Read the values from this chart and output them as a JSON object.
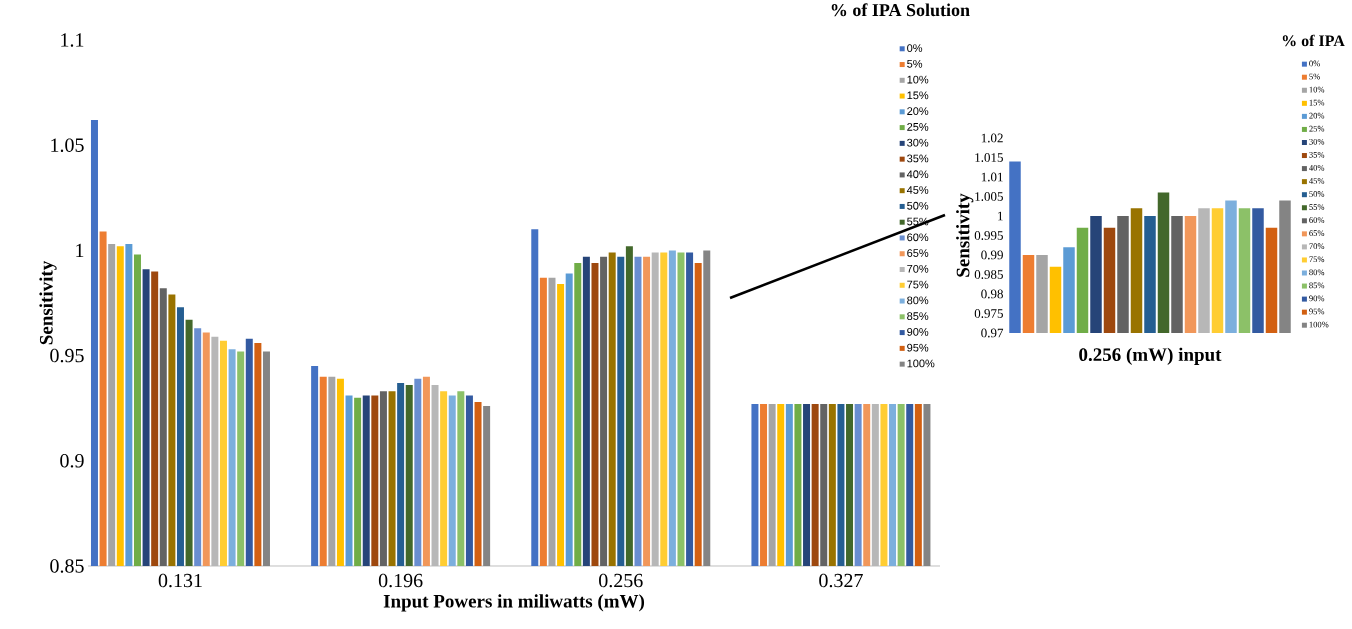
{
  "chart_data": [
    {
      "type": "bar",
      "categories": [
        "0.131",
        "0.196",
        "0.256",
        "0.327"
      ],
      "xlabel": "Input Powers in miliwatts (mW)",
      "ylabel": "Sensitivity",
      "legend_title": "% of IPA Solution",
      "legend": "top right",
      "ylim": [
        0.85,
        1.1
      ],
      "yticks": [
        0.85,
        0.9,
        0.95,
        1,
        1.05,
        1.1
      ],
      "series": [
        {
          "name": "0%",
          "color": "#4472c4",
          "values": [
            1.062,
            0.945,
            1.01,
            0.927
          ]
        },
        {
          "name": "5%",
          "color": "#ed7d31",
          "values": [
            1.009,
            0.94,
            0.987,
            0.927
          ]
        },
        {
          "name": "10%",
          "color": "#a5a5a5",
          "values": [
            1.003,
            0.94,
            0.987,
            0.927
          ]
        },
        {
          "name": "15%",
          "color": "#ffc000",
          "values": [
            1.002,
            0.939,
            0.984,
            0.927
          ]
        },
        {
          "name": "20%",
          "color": "#5b9bd5",
          "values": [
            1.003,
            0.931,
            0.989,
            0.927
          ]
        },
        {
          "name": "25%",
          "color": "#70ad47",
          "values": [
            0.998,
            0.93,
            0.994,
            0.927
          ]
        },
        {
          "name": "30%",
          "color": "#264478",
          "values": [
            0.991,
            0.931,
            0.997,
            0.927
          ]
        },
        {
          "name": "35%",
          "color": "#9e480e",
          "values": [
            0.99,
            0.931,
            0.994,
            0.927
          ]
        },
        {
          "name": "40%",
          "color": "#636363",
          "values": [
            0.982,
            0.933,
            0.997,
            0.927
          ]
        },
        {
          "name": "45%",
          "color": "#997300",
          "values": [
            0.979,
            0.933,
            0.999,
            0.927
          ]
        },
        {
          "name": "50%",
          "color": "#255e91",
          "values": [
            0.973,
            0.937,
            0.997,
            0.927
          ]
        },
        {
          "name": "55%",
          "color": "#43682b",
          "values": [
            0.967,
            0.936,
            1.002,
            0.927
          ]
        },
        {
          "name": "60%",
          "color": "#698ed0",
          "values": [
            0.963,
            0.939,
            0.997,
            0.927
          ]
        },
        {
          "name": "65%",
          "color": "#f1975a",
          "values": [
            0.961,
            0.94,
            0.997,
            0.927
          ]
        },
        {
          "name": "70%",
          "color": "#b7b7b7",
          "values": [
            0.959,
            0.936,
            0.999,
            0.927
          ]
        },
        {
          "name": "75%",
          "color": "#ffcd33",
          "values": [
            0.957,
            0.933,
            0.999,
            0.927
          ]
        },
        {
          "name": "80%",
          "color": "#7cafdd",
          "values": [
            0.953,
            0.931,
            1.0,
            0.927
          ]
        },
        {
          "name": "85%",
          "color": "#8cc168",
          "values": [
            0.952,
            0.933,
            0.999,
            0.927
          ]
        },
        {
          "name": "90%",
          "color": "#335aa1",
          "values": [
            0.958,
            0.931,
            0.999,
            0.927
          ]
        },
        {
          "name": "95%",
          "color": "#d26012",
          "values": [
            0.956,
            0.928,
            0.994,
            0.927
          ]
        },
        {
          "name": "100%",
          "color": "#848484",
          "values": [
            0.952,
            0.926,
            1.0,
            0.927
          ]
        }
      ]
    },
    {
      "type": "bar",
      "categories": [
        null
      ],
      "xlabel": "0.256 (mW) input",
      "ylabel": "Sensitivity",
      "legend_title": "% of IPA",
      "legend": "right",
      "ylim": [
        0.97,
        1.02
      ],
      "yticks": [
        0.97,
        0.975,
        0.98,
        0.985,
        0.99,
        0.995,
        1,
        1.005,
        1.01,
        1.015,
        1.02
      ],
      "series": [
        {
          "name": "0%",
          "color": "#4472c4",
          "values": [
            1.014
          ]
        },
        {
          "name": "5%",
          "color": "#ed7d31",
          "values": [
            0.99
          ]
        },
        {
          "name": "10%",
          "color": "#a5a5a5",
          "values": [
            0.99
          ]
        },
        {
          "name": "15%",
          "color": "#ffc000",
          "values": [
            0.987
          ]
        },
        {
          "name": "20%",
          "color": "#5b9bd5",
          "values": [
            0.992
          ]
        },
        {
          "name": "25%",
          "color": "#70ad47",
          "values": [
            0.997
          ]
        },
        {
          "name": "30%",
          "color": "#264478",
          "values": [
            1.0
          ]
        },
        {
          "name": "35%",
          "color": "#9e480e",
          "values": [
            0.997
          ]
        },
        {
          "name": "40%",
          "color": "#636363",
          "values": [
            1.0
          ]
        },
        {
          "name": "45%",
          "color": "#997300",
          "values": [
            1.002
          ]
        },
        {
          "name": "50%",
          "color": "#255e91",
          "values": [
            1.0
          ]
        },
        {
          "name": "55%",
          "color": "#43682b",
          "values": [
            1.006
          ]
        },
        {
          "name": "60%",
          "color": "#636363",
          "values": [
            1.0
          ]
        },
        {
          "name": "65%",
          "color": "#f1975a",
          "values": [
            1.0
          ]
        },
        {
          "name": "70%",
          "color": "#b7b7b7",
          "values": [
            1.002
          ]
        },
        {
          "name": "75%",
          "color": "#ffcd33",
          "values": [
            1.002
          ]
        },
        {
          "name": "80%",
          "color": "#7cafdd",
          "values": [
            1.004
          ]
        },
        {
          "name": "85%",
          "color": "#8cc168",
          "values": [
            1.002
          ]
        },
        {
          "name": "90%",
          "color": "#335aa1",
          "values": [
            1.002
          ]
        },
        {
          "name": "95%",
          "color": "#d26012",
          "values": [
            0.997
          ]
        },
        {
          "name": "100%",
          "color": "#848484",
          "values": [
            1.004
          ]
        }
      ]
    }
  ]
}
